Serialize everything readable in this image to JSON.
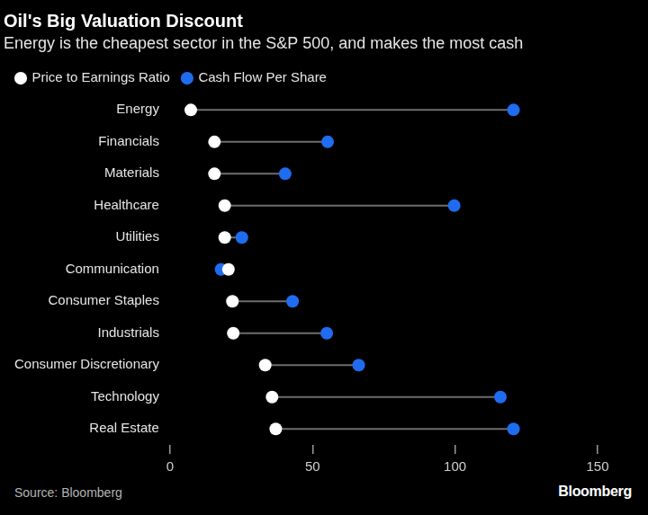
{
  "chart_data": {
    "type": "dumbbell",
    "orientation": "horizontal",
    "title": "Oil's Big Valuation Discount",
    "subtitle": "Energy is the cheapest sector in the S&P 500, and makes the most cash",
    "categories": [
      "Energy",
      "Financials",
      "Materials",
      "Healthcare",
      "Utilities",
      "Communication",
      "Consumer Staples",
      "Industrials",
      "Consumer Discretionary",
      "Technology",
      "Real Estate"
    ],
    "series": [
      {
        "name": "Price to Earnings Ratio",
        "color": "#ffffff",
        "marker": "circle",
        "values": [
          7.3,
          15.6,
          15.6,
          19.2,
          19.2,
          20.5,
          21.9,
          22.2,
          33.4,
          35.8,
          37.1
        ]
      },
      {
        "name": "Cash Flow Per Share",
        "color": "#1f6cf0",
        "marker": "circle",
        "values": [
          120.5,
          55.3,
          40.4,
          99.7,
          25.2,
          17.9,
          43.0,
          55.0,
          66.2,
          115.9,
          120.5
        ]
      }
    ],
    "xlim": [
      0,
      150
    ],
    "xticks": [
      0,
      50,
      100,
      150
    ],
    "grid": false,
    "legend": "top-left",
    "source": "Source: Bloomberg",
    "logo": "Bloomberg"
  }
}
